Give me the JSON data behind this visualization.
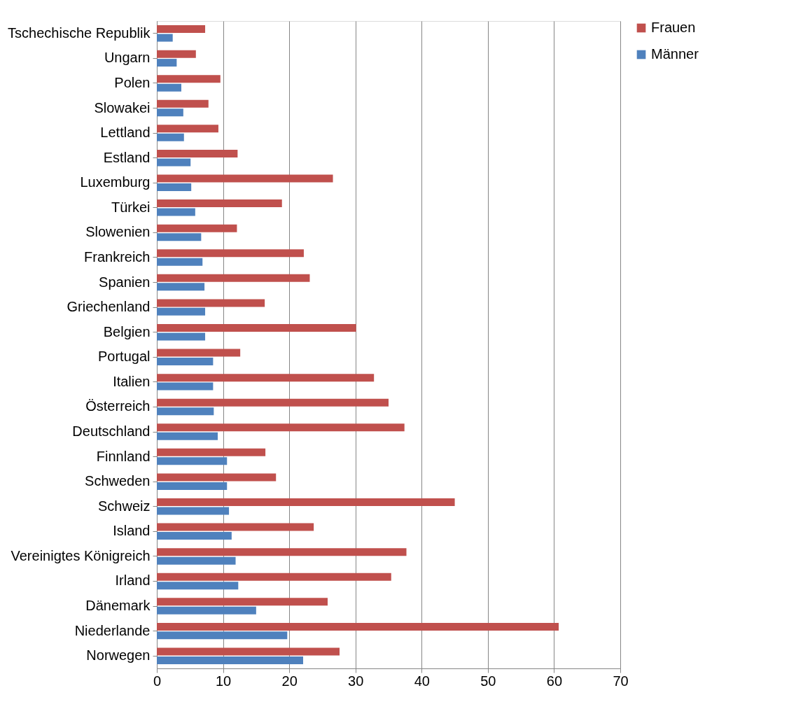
{
  "chart_data": {
    "type": "bar",
    "orientation": "horizontal",
    "categories": [
      "Tschechische Republik",
      "Ungarn",
      "Polen",
      "Slowakei",
      "Lettland",
      "Estland",
      "Luxemburg",
      "Türkei",
      "Slowenien",
      "Frankreich",
      "Spanien",
      "Griechenland",
      "Belgien",
      "Portugal",
      "Italien",
      "Österreich",
      "Deutschland",
      "Finnland",
      "Schweden",
      "Schweiz",
      "Island",
      "Vereinigtes Königreich",
      "Irland",
      "Dänemark",
      "Niederlande",
      "Norwegen"
    ],
    "series": [
      {
        "name": "Frauen",
        "color": "#c0504d",
        "values": [
          7.3,
          5.9,
          9.6,
          7.8,
          9.3,
          12.2,
          26.6,
          18.9,
          12.1,
          22.2,
          23.1,
          16.3,
          30.1,
          12.6,
          32.8,
          35.0,
          37.4,
          16.4,
          18.0,
          45.0,
          23.7,
          37.7,
          35.4,
          25.8,
          60.7,
          27.6
        ]
      },
      {
        "name": "Männer",
        "color": "#4f81bd",
        "values": [
          2.4,
          3.0,
          3.7,
          4.0,
          4.1,
          5.1,
          5.2,
          5.8,
          6.7,
          6.9,
          7.2,
          7.3,
          7.3,
          8.5,
          8.5,
          8.6,
          9.2,
          10.6,
          10.6,
          10.9,
          11.3,
          11.9,
          12.3,
          15.0,
          19.7,
          22.1
        ]
      }
    ],
    "xlim": [
      0,
      70
    ],
    "xticks": [
      0,
      10,
      20,
      30,
      40,
      50,
      60,
      70
    ],
    "grid": "x",
    "legend": "right"
  }
}
